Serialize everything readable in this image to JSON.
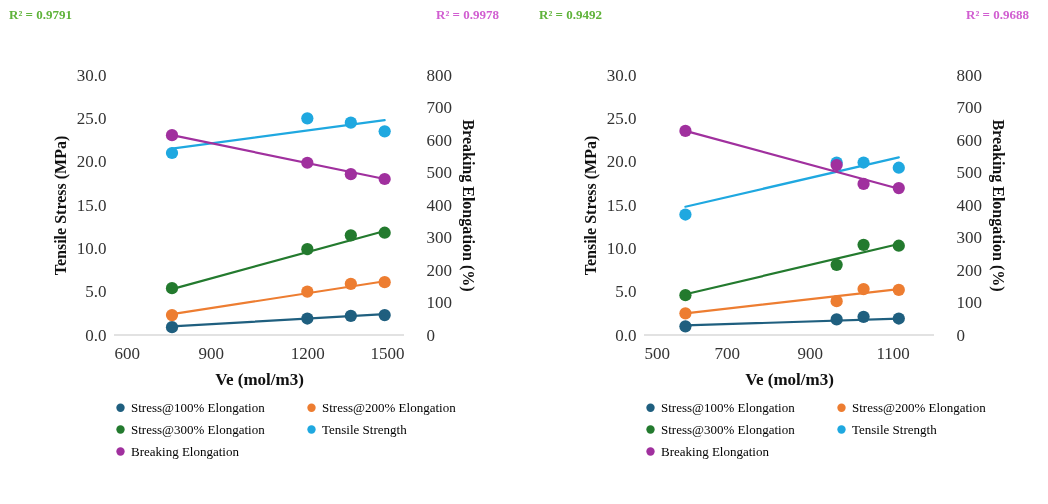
{
  "chart_data": [
    {
      "type": "scatter",
      "xlabel": "Ve (mol/m3)",
      "ylabel": "Tensile Stress (MPa)",
      "y2label": "Breaking Elongation (%)",
      "annotations": [
        "R² = 0.9791",
        "R² = 0.9978"
      ],
      "x": [
        780,
        1200,
        1335,
        1440
      ],
      "xlim": [
        600,
        1500
      ],
      "xticks": [
        600,
        900,
        1200,
        1500
      ],
      "ylim": [
        0,
        30
      ],
      "yticks": [
        {
          "value": 0,
          "label": "0.0"
        },
        {
          "value": 5,
          "label": "5.0"
        },
        {
          "value": 10,
          "label": "10.0"
        },
        {
          "value": 15,
          "label": "15.0"
        },
        {
          "value": 20,
          "label": "20.0"
        },
        {
          "value": 25,
          "label": "25.0"
        },
        {
          "value": 30,
          "label": "30.0"
        }
      ],
      "y2lim": [
        0,
        800
      ],
      "y2ticks": [
        0,
        100,
        200,
        300,
        400,
        500,
        600,
        700,
        800
      ],
      "marker": "circle",
      "legend": "bottom",
      "series": [
        {
          "name": "Stress@100% Elongation",
          "color": "#1f5f7f",
          "values": [
            0.9,
            1.9,
            2.2,
            2.3
          ]
        },
        {
          "name": "Stress@200% Elongation",
          "color": "#ed7d31",
          "values": [
            2.3,
            5.0,
            5.9,
            6.1
          ]
        },
        {
          "name": "Stress@300% Elongation",
          "color": "#237a2e",
          "values": [
            5.4,
            9.9,
            11.5,
            11.8
          ]
        },
        {
          "name": "Tensile Strength",
          "color": "#1fa8e0",
          "values": [
            21.0,
            25.0,
            24.5,
            23.5
          ]
        },
        {
          "name": "Breaking Elongation",
          "color": "#a0309e",
          "axis": "y2",
          "values": [
            615,
            530,
            495,
            480
          ]
        },
        {
          "type": "line",
          "marker": "none",
          "color": "#1f5f7f",
          "x": [
            780,
            1440
          ],
          "values": [
            1.0,
            2.4
          ]
        },
        {
          "type": "line",
          "marker": "none",
          "color": "#ed7d31",
          "x": [
            780,
            1440
          ],
          "values": [
            2.4,
            6.2
          ]
        },
        {
          "type": "line",
          "marker": "none",
          "color": "#237a2e",
          "x": [
            780,
            1440
          ],
          "values": [
            5.3,
            12.0
          ]
        },
        {
          "type": "line",
          "marker": "none",
          "color": "#1fa8e0",
          "x": [
            780,
            1440
          ],
          "values": [
            21.5,
            24.8
          ]
        },
        {
          "type": "line",
          "marker": "none",
          "color": "#a0309e",
          "axis": "y2",
          "x": [
            780,
            1440
          ],
          "values": [
            615,
            480
          ]
        }
      ]
    },
    {
      "type": "scatter",
      "xlabel": "Ve (mol/m3)",
      "ylabel": "Tensile Stress (MPa)",
      "y2label": "Breaking Elongation (%)",
      "annotations": [
        "R² = 0.9492",
        "R² = 0.9688"
      ],
      "x": [
        600,
        965,
        1030,
        1115
      ],
      "xlim": [
        500,
        1200
      ],
      "xticks": [
        500,
        700,
        900,
        1100
      ],
      "ylim": [
        0,
        30
      ],
      "yticks": [
        {
          "value": 0,
          "label": "0.0"
        },
        {
          "value": 5,
          "label": "5.0"
        },
        {
          "value": 10,
          "label": "10.0"
        },
        {
          "value": 15,
          "label": "15.0"
        },
        {
          "value": 20,
          "label": "20.0"
        },
        {
          "value": 25,
          "label": "25.0"
        },
        {
          "value": 30,
          "label": "30.0"
        }
      ],
      "y2lim": [
        0,
        800
      ],
      "y2ticks": [
        0,
        100,
        200,
        300,
        400,
        500,
        600,
        700,
        800
      ],
      "marker": "circle",
      "legend": "bottom",
      "series": [
        {
          "name": "Stress@100% Elongation",
          "color": "#1f5f7f",
          "values": [
            1.0,
            1.8,
            2.1,
            1.9
          ]
        },
        {
          "name": "Stress@200% Elongation",
          "color": "#ed7d31",
          "values": [
            2.5,
            3.9,
            5.3,
            5.2
          ]
        },
        {
          "name": "Stress@300% Elongation",
          "color": "#237a2e",
          "values": [
            4.6,
            8.1,
            10.4,
            10.3
          ]
        },
        {
          "name": "Tensile Strength",
          "color": "#1fa8e0",
          "values": [
            13.9,
            19.9,
            19.9,
            19.3
          ]
        },
        {
          "name": "Breaking Elongation",
          "color": "#a0309e",
          "axis": "y2",
          "values": [
            628,
            523,
            465,
            452
          ]
        },
        {
          "type": "line",
          "marker": "none",
          "color": "#1f5f7f",
          "x": [
            600,
            1115
          ],
          "values": [
            1.1,
            1.9
          ]
        },
        {
          "type": "line",
          "marker": "none",
          "color": "#ed7d31",
          "x": [
            600,
            1115
          ],
          "values": [
            2.5,
            5.3
          ]
        },
        {
          "type": "line",
          "marker": "none",
          "color": "#237a2e",
          "x": [
            600,
            1115
          ],
          "values": [
            4.7,
            10.5
          ]
        },
        {
          "type": "line",
          "marker": "none",
          "color": "#1fa8e0",
          "x": [
            600,
            1115
          ],
          "values": [
            14.8,
            20.5
          ]
        },
        {
          "type": "line",
          "marker": "none",
          "color": "#a0309e",
          "axis": "y2",
          "x": [
            600,
            1115
          ],
          "values": [
            628,
            450
          ]
        }
      ]
    }
  ]
}
